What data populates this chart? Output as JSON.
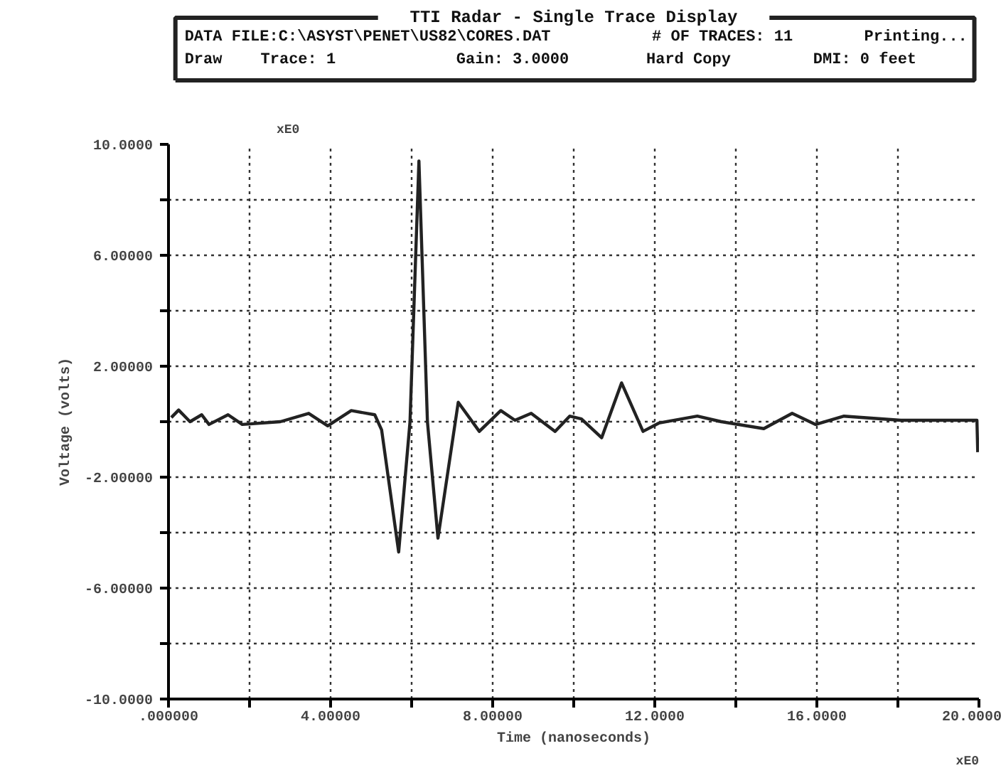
{
  "chart_data": {
    "type": "line",
    "title": "TTI Radar - Single Trace Display",
    "xlabel": "Time (nanoseconds)",
    "ylabel": "Voltage (volts)",
    "annotations": [
      "DATA FILE:C:\\ASYST\\PENET\\US82\\CORES.DAT",
      "# OF TRACES: 11",
      "Printing...",
      "Draw",
      "Trace: 1",
      "Gain: 3.0000",
      "Hard Copy",
      "DMI: 0 feet",
      "xE0",
      "xE0"
    ],
    "series": [
      {
        "color": "#222222",
        "x": [
          0.07,
          0.25,
          0.53,
          0.82,
          1.0,
          1.47,
          1.82,
          2.76,
          3.46,
          3.93,
          4.51,
          5.09,
          5.26,
          5.68,
          5.96,
          6.18,
          6.39,
          6.65,
          7.15,
          7.67,
          8.2,
          8.55,
          8.95,
          9.54,
          9.9,
          10.19,
          10.69,
          11.18,
          11.71,
          12.1,
          13.05,
          13.64,
          14.69,
          15.39,
          15.97,
          16.67,
          18.07,
          19.95,
          19.97
        ],
        "values": [
          0.15,
          0.42,
          0.0,
          0.25,
          -0.1,
          0.25,
          -0.1,
          0.0,
          0.3,
          -0.15,
          0.4,
          0.25,
          -0.3,
          -4.7,
          0.0,
          9.4,
          0.0,
          -4.2,
          0.7,
          -0.35,
          0.4,
          0.05,
          0.3,
          -0.35,
          0.2,
          0.1,
          -0.58,
          1.4,
          -0.35,
          -0.05,
          0.2,
          0.0,
          -0.25,
          0.3,
          -0.1,
          0.2,
          0.05,
          0.05,
          -1.1
        ]
      }
    ],
    "xlim": [
      0,
      20
    ],
    "ylim": [
      -10,
      10
    ],
    "xticks": [
      {
        "value": 0,
        "label": ".000000"
      },
      {
        "value": 2,
        "label": null
      },
      {
        "value": 4,
        "label": "4.00000"
      },
      {
        "value": 6,
        "label": null
      },
      {
        "value": 8,
        "label": "8.00000"
      },
      {
        "value": 10,
        "label": null
      },
      {
        "value": 12,
        "label": "12.0000"
      },
      {
        "value": 14,
        "label": null
      },
      {
        "value": 16,
        "label": "16.0000"
      },
      {
        "value": 18,
        "label": null
      },
      {
        "value": 20,
        "label": "20.0000"
      }
    ],
    "yticks": [
      {
        "value": -10,
        "label": "-10.0000"
      },
      {
        "value": -8,
        "label": null
      },
      {
        "value": -6,
        "label": "-6.00000"
      },
      {
        "value": -4,
        "label": null
      },
      {
        "value": -2,
        "label": "-2.00000"
      },
      {
        "value": 0,
        "label": null
      },
      {
        "value": 2,
        "label": "2.00000"
      },
      {
        "value": 4,
        "label": null
      },
      {
        "value": 6,
        "label": "6.00000"
      },
      {
        "value": 8,
        "label": null
      },
      {
        "value": 10,
        "label": "10.0000"
      }
    ],
    "grid": true,
    "line_style": "solid",
    "marker": "none"
  }
}
